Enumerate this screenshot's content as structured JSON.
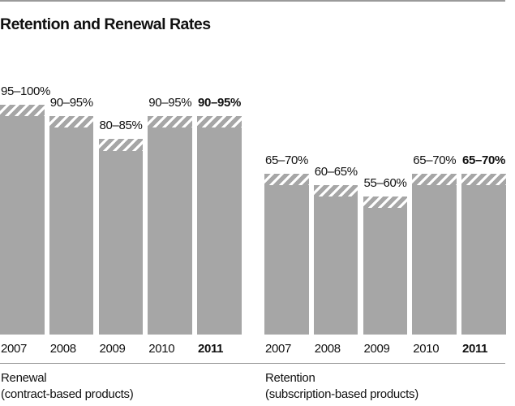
{
  "title": "Retention and Renewal Rates",
  "colors": {
    "bar": "#a6a6a6",
    "hatch_stripe": "#ffffff",
    "rule": "#9a9a9a",
    "text": "#111111"
  },
  "chart_data": {
    "type": "bar",
    "subtype": "range-top-hatched",
    "unit": "%",
    "ylim": [
      0,
      100
    ],
    "grid": false,
    "legend": false,
    "categories": [
      "2007",
      "2008",
      "2009",
      "2010",
      "2011"
    ],
    "title": "Retention and Renewal Rates",
    "groups": [
      {
        "name": "Renewal",
        "subtitle": "(contract-based products)",
        "bars": [
          {
            "year": "2007",
            "label": "95–100%",
            "low": 95,
            "high": 100,
            "bold": false
          },
          {
            "year": "2008",
            "label": "90–95%",
            "low": 90,
            "high": 95,
            "bold": false
          },
          {
            "year": "2009",
            "label": "80–85%",
            "low": 80,
            "high": 85,
            "bold": false
          },
          {
            "year": "2010",
            "label": "90–95%",
            "low": 90,
            "high": 95,
            "bold": false
          },
          {
            "year": "2011",
            "label": "90–95%",
            "low": 90,
            "high": 95,
            "bold": true
          }
        ]
      },
      {
        "name": "Retention",
        "subtitle": "(subscription-based products)",
        "bars": [
          {
            "year": "2007",
            "label": "65–70%",
            "low": 65,
            "high": 70,
            "bold": false
          },
          {
            "year": "2008",
            "label": "60–65%",
            "low": 60,
            "high": 65,
            "bold": false
          },
          {
            "year": "2009",
            "label": "55–60%",
            "low": 55,
            "high": 60,
            "bold": false
          },
          {
            "year": "2010",
            "label": "65–70%",
            "low": 65,
            "high": 70,
            "bold": false
          },
          {
            "year": "2011",
            "label": "65–70%",
            "low": 65,
            "high": 70,
            "bold": true
          }
        ]
      }
    ]
  }
}
